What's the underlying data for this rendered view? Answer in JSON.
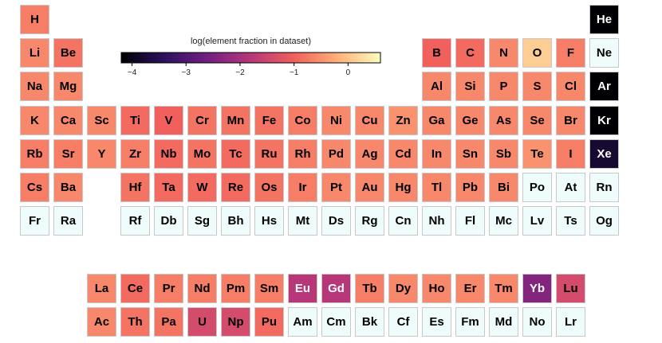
{
  "colorbar": {
    "title": "log(element fraction in dataset)",
    "ticks": [
      "−4",
      "−3",
      "−2",
      "−1",
      "0"
    ],
    "tick_values": [
      -4,
      -3,
      -2,
      -1,
      0
    ],
    "range": [
      -4.2,
      0.6
    ],
    "colormap": [
      "#000004",
      "#2c115f",
      "#721f81",
      "#b73779",
      "#f1605d",
      "#feb078",
      "#fcfdbf"
    ],
    "no_data_color": "#eefcfc"
  },
  "chart_data": {
    "type": "heatmap",
    "title": "",
    "value_label": "log(element fraction in dataset)",
    "elements": [
      {
        "symbol": "H",
        "row": 1,
        "col": 1,
        "value": -0.7
      },
      {
        "symbol": "He",
        "row": 1,
        "col": 18,
        "value": -4.3
      },
      {
        "symbol": "Li",
        "row": 2,
        "col": 1,
        "value": -0.6
      },
      {
        "symbol": "Be",
        "row": 2,
        "col": 2,
        "value": -0.8
      },
      {
        "symbol": "B",
        "row": 2,
        "col": 13,
        "value": -1.0
      },
      {
        "symbol": "C",
        "row": 2,
        "col": 14,
        "value": -0.9
      },
      {
        "symbol": "N",
        "row": 2,
        "col": 15,
        "value": -0.6
      },
      {
        "symbol": "O",
        "row": 2,
        "col": 16,
        "value": 0.1
      },
      {
        "symbol": "F",
        "row": 2,
        "col": 17,
        "value": -0.7
      },
      {
        "symbol": "Ne",
        "row": 2,
        "col": 18,
        "value": null
      },
      {
        "symbol": "Na",
        "row": 3,
        "col": 1,
        "value": -0.6
      },
      {
        "symbol": "Mg",
        "row": 3,
        "col": 2,
        "value": -0.6
      },
      {
        "symbol": "Al",
        "row": 3,
        "col": 13,
        "value": -0.6
      },
      {
        "symbol": "Si",
        "row": 3,
        "col": 14,
        "value": -0.6
      },
      {
        "symbol": "P",
        "row": 3,
        "col": 15,
        "value": -0.6
      },
      {
        "symbol": "S",
        "row": 3,
        "col": 16,
        "value": -0.6
      },
      {
        "symbol": "Cl",
        "row": 3,
        "col": 17,
        "value": -0.6
      },
      {
        "symbol": "Ar",
        "row": 3,
        "col": 18,
        "value": -4.3
      },
      {
        "symbol": "K",
        "row": 4,
        "col": 1,
        "value": -0.6
      },
      {
        "symbol": "Ca",
        "row": 4,
        "col": 2,
        "value": -0.6
      },
      {
        "symbol": "Sc",
        "row": 4,
        "col": 3,
        "value": -0.6
      },
      {
        "symbol": "Ti",
        "row": 4,
        "col": 4,
        "value": -0.9
      },
      {
        "symbol": "V",
        "row": 4,
        "col": 5,
        "value": -1.0
      },
      {
        "symbol": "Cr",
        "row": 4,
        "col": 6,
        "value": -0.8
      },
      {
        "symbol": "Mn",
        "row": 4,
        "col": 7,
        "value": -0.8
      },
      {
        "symbol": "Fe",
        "row": 4,
        "col": 8,
        "value": -0.8
      },
      {
        "symbol": "Co",
        "row": 4,
        "col": 9,
        "value": -0.7
      },
      {
        "symbol": "Ni",
        "row": 4,
        "col": 10,
        "value": -0.6
      },
      {
        "symbol": "Cu",
        "row": 4,
        "col": 11,
        "value": -0.6
      },
      {
        "symbol": "Zn",
        "row": 4,
        "col": 12,
        "value": -0.5
      },
      {
        "symbol": "Ga",
        "row": 4,
        "col": 13,
        "value": -0.6
      },
      {
        "symbol": "Ge",
        "row": 4,
        "col": 14,
        "value": -0.6
      },
      {
        "symbol": "As",
        "row": 4,
        "col": 15,
        "value": -0.6
      },
      {
        "symbol": "Se",
        "row": 4,
        "col": 16,
        "value": -0.6
      },
      {
        "symbol": "Br",
        "row": 4,
        "col": 17,
        "value": -0.6
      },
      {
        "symbol": "Kr",
        "row": 4,
        "col": 18,
        "value": -4.3
      },
      {
        "symbol": "Rb",
        "row": 5,
        "col": 1,
        "value": -0.7
      },
      {
        "symbol": "Sr",
        "row": 5,
        "col": 2,
        "value": -0.7
      },
      {
        "symbol": "Y",
        "row": 5,
        "col": 3,
        "value": -0.6
      },
      {
        "symbol": "Zr",
        "row": 5,
        "col": 4,
        "value": -0.7
      },
      {
        "symbol": "Nb",
        "row": 5,
        "col": 5,
        "value": -0.9
      },
      {
        "symbol": "Mo",
        "row": 5,
        "col": 6,
        "value": -0.8
      },
      {
        "symbol": "Tc",
        "row": 5,
        "col": 7,
        "value": -0.9
      },
      {
        "symbol": "Ru",
        "row": 5,
        "col": 8,
        "value": -0.8
      },
      {
        "symbol": "Rh",
        "row": 5,
        "col": 9,
        "value": -0.7
      },
      {
        "symbol": "Pd",
        "row": 5,
        "col": 10,
        "value": -0.6
      },
      {
        "symbol": "Ag",
        "row": 5,
        "col": 11,
        "value": -0.6
      },
      {
        "symbol": "Cd",
        "row": 5,
        "col": 12,
        "value": -0.6
      },
      {
        "symbol": "In",
        "row": 5,
        "col": 13,
        "value": -0.6
      },
      {
        "symbol": "Sn",
        "row": 5,
        "col": 14,
        "value": -0.6
      },
      {
        "symbol": "Sb",
        "row": 5,
        "col": 15,
        "value": -0.6
      },
      {
        "symbol": "Te",
        "row": 5,
        "col": 16,
        "value": -0.5
      },
      {
        "symbol": "I",
        "row": 5,
        "col": 17,
        "value": -0.7
      },
      {
        "symbol": "Xe",
        "row": 5,
        "col": 18,
        "value": -3.8
      },
      {
        "symbol": "Cs",
        "row": 6,
        "col": 1,
        "value": -0.7
      },
      {
        "symbol": "Ba",
        "row": 6,
        "col": 2,
        "value": -0.6
      },
      {
        "symbol": "Hf",
        "row": 6,
        "col": 4,
        "value": -0.8
      },
      {
        "symbol": "Ta",
        "row": 6,
        "col": 5,
        "value": -0.9
      },
      {
        "symbol": "W",
        "row": 6,
        "col": 6,
        "value": -0.9
      },
      {
        "symbol": "Re",
        "row": 6,
        "col": 7,
        "value": -0.9
      },
      {
        "symbol": "Os",
        "row": 6,
        "col": 8,
        "value": -0.8
      },
      {
        "symbol": "Ir",
        "row": 6,
        "col": 9,
        "value": -0.7
      },
      {
        "symbol": "Pt",
        "row": 6,
        "col": 10,
        "value": -0.6
      },
      {
        "symbol": "Au",
        "row": 6,
        "col": 11,
        "value": -0.6
      },
      {
        "symbol": "Hg",
        "row": 6,
        "col": 12,
        "value": -0.6
      },
      {
        "symbol": "Tl",
        "row": 6,
        "col": 13,
        "value": -0.6
      },
      {
        "symbol": "Pb",
        "row": 6,
        "col": 14,
        "value": -0.6
      },
      {
        "symbol": "Bi",
        "row": 6,
        "col": 15,
        "value": -0.6
      },
      {
        "symbol": "Po",
        "row": 6,
        "col": 16,
        "value": null
      },
      {
        "symbol": "At",
        "row": 6,
        "col": 17,
        "value": null
      },
      {
        "symbol": "Rn",
        "row": 6,
        "col": 18,
        "value": null
      },
      {
        "symbol": "Fr",
        "row": 7,
        "col": 1,
        "value": null
      },
      {
        "symbol": "Ra",
        "row": 7,
        "col": 2,
        "value": null
      },
      {
        "symbol": "Rf",
        "row": 7,
        "col": 4,
        "value": null
      },
      {
        "symbol": "Db",
        "row": 7,
        "col": 5,
        "value": null
      },
      {
        "symbol": "Sg",
        "row": 7,
        "col": 6,
        "value": null
      },
      {
        "symbol": "Bh",
        "row": 7,
        "col": 7,
        "value": null
      },
      {
        "symbol": "Hs",
        "row": 7,
        "col": 8,
        "value": null
      },
      {
        "symbol": "Mt",
        "row": 7,
        "col": 9,
        "value": null
      },
      {
        "symbol": "Ds",
        "row": 7,
        "col": 10,
        "value": null
      },
      {
        "symbol": "Rg",
        "row": 7,
        "col": 11,
        "value": null
      },
      {
        "symbol": "Cn",
        "row": 7,
        "col": 12,
        "value": null
      },
      {
        "symbol": "Nh",
        "row": 7,
        "col": 13,
        "value": null
      },
      {
        "symbol": "Fl",
        "row": 7,
        "col": 14,
        "value": null
      },
      {
        "symbol": "Mc",
        "row": 7,
        "col": 15,
        "value": null
      },
      {
        "symbol": "Lv",
        "row": 7,
        "col": 16,
        "value": null
      },
      {
        "symbol": "Ts",
        "row": 7,
        "col": 17,
        "value": null
      },
      {
        "symbol": "Og",
        "row": 7,
        "col": 18,
        "value": null
      },
      {
        "symbol": "La",
        "row": 9,
        "col": 3,
        "value": -0.6
      },
      {
        "symbol": "Ce",
        "row": 9,
        "col": 4,
        "value": -0.9
      },
      {
        "symbol": "Pr",
        "row": 9,
        "col": 5,
        "value": -0.7
      },
      {
        "symbol": "Nd",
        "row": 9,
        "col": 6,
        "value": -0.7
      },
      {
        "symbol": "Pm",
        "row": 9,
        "col": 7,
        "value": -0.7
      },
      {
        "symbol": "Sm",
        "row": 9,
        "col": 8,
        "value": -0.7
      },
      {
        "symbol": "Eu",
        "row": 9,
        "col": 9,
        "value": -1.8
      },
      {
        "symbol": "Gd",
        "row": 9,
        "col": 10,
        "value": -1.8
      },
      {
        "symbol": "Tb",
        "row": 9,
        "col": 11,
        "value": -0.7
      },
      {
        "symbol": "Dy",
        "row": 9,
        "col": 12,
        "value": -0.6
      },
      {
        "symbol": "Ho",
        "row": 9,
        "col": 13,
        "value": -0.6
      },
      {
        "symbol": "Er",
        "row": 9,
        "col": 14,
        "value": -0.6
      },
      {
        "symbol": "Tm",
        "row": 9,
        "col": 15,
        "value": -0.6
      },
      {
        "symbol": "Yb",
        "row": 9,
        "col": 16,
        "value": -2.4
      },
      {
        "symbol": "Lu",
        "row": 9,
        "col": 17,
        "value": -1.4
      },
      {
        "symbol": "Ac",
        "row": 10,
        "col": 3,
        "value": -0.6
      },
      {
        "symbol": "Th",
        "row": 10,
        "col": 4,
        "value": -0.8
      },
      {
        "symbol": "Pa",
        "row": 10,
        "col": 5,
        "value": -0.8
      },
      {
        "symbol": "U",
        "row": 10,
        "col": 6,
        "value": -1.4
      },
      {
        "symbol": "Np",
        "row": 10,
        "col": 7,
        "value": -1.4
      },
      {
        "symbol": "Pu",
        "row": 10,
        "col": 8,
        "value": -0.9
      },
      {
        "symbol": "Am",
        "row": 10,
        "col": 9,
        "value": null
      },
      {
        "symbol": "Cm",
        "row": 10,
        "col": 10,
        "value": null
      },
      {
        "symbol": "Bk",
        "row": 10,
        "col": 11,
        "value": null
      },
      {
        "symbol": "Cf",
        "row": 10,
        "col": 12,
        "value": null
      },
      {
        "symbol": "Es",
        "row": 10,
        "col": 13,
        "value": null
      },
      {
        "symbol": "Fm",
        "row": 10,
        "col": 14,
        "value": null
      },
      {
        "symbol": "Md",
        "row": 10,
        "col": 15,
        "value": null
      },
      {
        "symbol": "No",
        "row": 10,
        "col": 16,
        "value": null
      },
      {
        "symbol": "Lr",
        "row": 10,
        "col": 17,
        "value": null
      }
    ]
  }
}
